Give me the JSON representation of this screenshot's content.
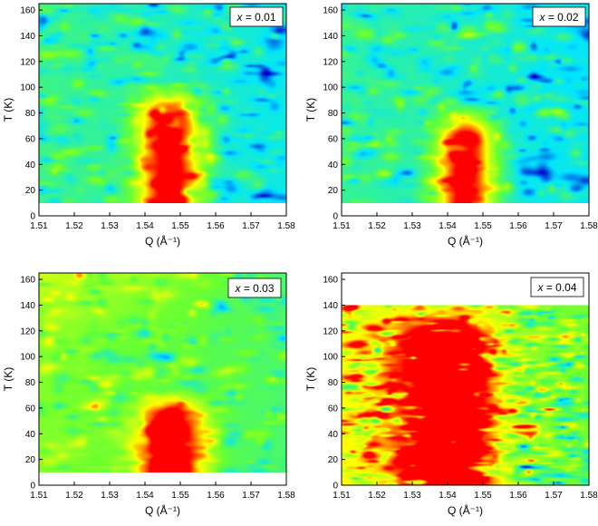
{
  "chart_data": [
    {
      "type": "heatmap",
      "panel": "x = 0.01",
      "label_prefix": "x",
      "label_value": " = 0.01",
      "xlabel": "Q (Å⁻¹)",
      "ylabel": "T (K)",
      "xlim": [
        1.51,
        1.58
      ],
      "ylim": [
        0,
        165
      ],
      "data_tmin": 10,
      "data_tmax": 165,
      "xticks": [
        "1.51",
        "1.52",
        "1.53",
        "1.54",
        "1.55",
        "1.56",
        "1.57",
        "1.58"
      ],
      "yticks": [
        "0",
        "20",
        "40",
        "60",
        "80",
        "100",
        "120",
        "140",
        "160"
      ],
      "peak": {
        "q_center": 1.547,
        "q_width": 0.0085,
        "t_onset": 105
      },
      "colorscale": [
        "#0000cc",
        "#00e5ff",
        "#66ff33",
        "#ffff00",
        "#ff0000"
      ],
      "background_level": 0.35,
      "noise": 0.18
    },
    {
      "type": "heatmap",
      "panel": "x = 0.02",
      "label_prefix": "x",
      "label_value": " = 0.02",
      "xlabel": "Q (Å⁻¹)",
      "ylabel": "T (K)",
      "xlim": [
        1.51,
        1.58
      ],
      "ylim": [
        0,
        165
      ],
      "data_tmin": 10,
      "data_tmax": 165,
      "xticks": [
        "1.51",
        "1.52",
        "1.53",
        "1.54",
        "1.55",
        "1.56",
        "1.57",
        "1.58"
      ],
      "yticks": [
        "0",
        "20",
        "40",
        "60",
        "80",
        "100",
        "120",
        "140",
        "160"
      ],
      "peak": {
        "q_center": 1.545,
        "q_width": 0.0075,
        "t_onset": 88
      },
      "colorscale": [
        "#0000cc",
        "#00e5ff",
        "#66ff33",
        "#ffff00",
        "#ff0000"
      ],
      "background_level": 0.33,
      "noise": 0.18
    },
    {
      "type": "heatmap",
      "panel": "x = 0.03",
      "label_prefix": "x",
      "label_value": " = 0.03",
      "xlabel": "Q (Å⁻¹)",
      "ylabel": "T (K)",
      "xlim": [
        1.51,
        1.58
      ],
      "ylim": [
        0,
        165
      ],
      "data_tmin": 10,
      "data_tmax": 165,
      "xticks": [
        "1.51",
        "1.52",
        "1.53",
        "1.54",
        "1.55",
        "1.56",
        "1.57",
        "1.58"
      ],
      "yticks": [
        "0",
        "20",
        "40",
        "60",
        "80",
        "100",
        "120",
        "140",
        "160"
      ],
      "peak": {
        "q_center": 1.547,
        "q_width": 0.0085,
        "t_onset": 75
      },
      "colorscale": [
        "#0000cc",
        "#00e5ff",
        "#66ff33",
        "#ffff00",
        "#ff0000"
      ],
      "background_level": 0.5,
      "noise": 0.16
    },
    {
      "type": "heatmap",
      "panel": "x = 0.04",
      "label_prefix": "x",
      "label_value": " = 0.04",
      "xlabel": "Q (Å⁻¹)",
      "ylabel": "T (K)",
      "xlim": [
        1.51,
        1.58
      ],
      "ylim": [
        0,
        165
      ],
      "data_tmin": 0,
      "data_tmax": 140,
      "xticks": [
        "1.51",
        "1.52",
        "1.53",
        "1.54",
        "1.55",
        "1.56",
        "1.57",
        "1.58"
      ],
      "yticks": [
        "0",
        "20",
        "40",
        "60",
        "80",
        "100",
        "120",
        "140",
        "160"
      ],
      "peak": {
        "q_center": 1.54,
        "q_width": 0.013,
        "t_onset": 140
      },
      "colorscale": [
        "#0000cc",
        "#00e5ff",
        "#66ff33",
        "#ffff00",
        "#ff0000"
      ],
      "background_level": 0.55,
      "noise": 0.3
    }
  ]
}
